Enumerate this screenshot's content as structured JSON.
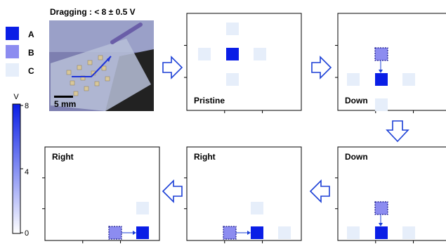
{
  "photo": {
    "title": "Dragging : < 8 ± 0.5 V",
    "scale_bar_label": "5 mm"
  },
  "legend": {
    "items": [
      {
        "label": "A",
        "color": "#0a1ee6"
      },
      {
        "label": "B",
        "color": "#8c8cf0"
      },
      {
        "label": "C",
        "color": "#e6eefa"
      }
    ]
  },
  "colorbar": {
    "unit": "V",
    "ticks": [
      "8",
      "4",
      "0"
    ],
    "color_high": "#0a1ee6",
    "color_low": "#ffffff"
  },
  "panels": [
    {
      "id": "p1",
      "label": "Pristine"
    },
    {
      "id": "p2",
      "label": "Down"
    },
    {
      "id": "p3",
      "label": "Down"
    },
    {
      "id": "p4",
      "label": "Right"
    },
    {
      "id": "p5",
      "label": "Right"
    }
  ],
  "colors": {
    "A": "#0a1ee6",
    "B": "#8c8cf0",
    "C": "#e6eefa",
    "arrow": "#1b3fd6"
  }
}
